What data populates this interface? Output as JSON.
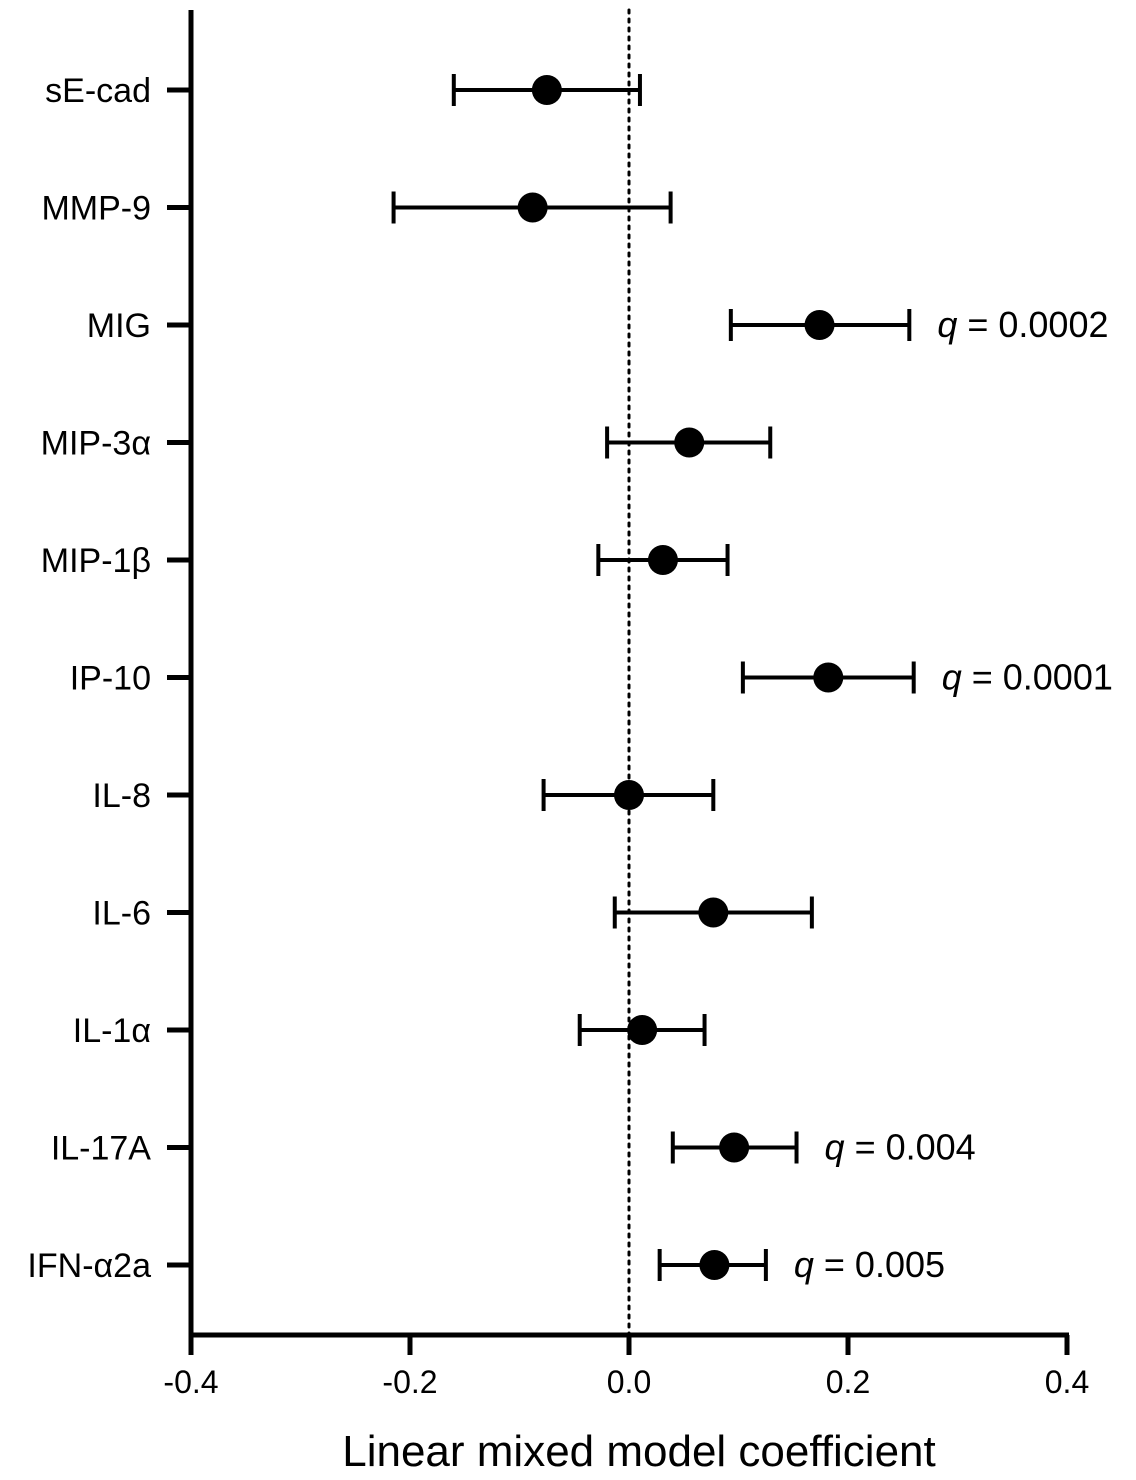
{
  "chart_data": {
    "type": "forest",
    "title": "",
    "xlabel": "Linear mixed model coefficient",
    "ylabel": "",
    "xlim": [
      -0.4,
      0.4
    ],
    "xticks": [
      "-0.4",
      "-0.2",
      "0.0",
      "0.2",
      "0.4"
    ],
    "reference_line": 0.0,
    "grid": false,
    "legend": "none",
    "categories": [
      "sE-cad",
      "MMP-9",
      "MIG",
      "MIP-3α",
      "MIP-1β",
      "IP-10",
      "IL-8",
      "IL-6",
      "IL-1α",
      "IL-17A",
      "IFN-α2a"
    ],
    "estimates": [
      {
        "label": "sE-cad",
        "value": -0.075,
        "low": -0.16,
        "high": 0.01,
        "q": ""
      },
      {
        "label": "MMP-9",
        "value": -0.088,
        "low": -0.215,
        "high": 0.038,
        "q": ""
      },
      {
        "label": "MIG",
        "value": 0.174,
        "low": 0.093,
        "high": 0.256,
        "q": "0.0002"
      },
      {
        "label": "MIP-3α",
        "value": 0.055,
        "low": -0.02,
        "high": 0.129,
        "q": ""
      },
      {
        "label": "MIP-1β",
        "value": 0.031,
        "low": -0.028,
        "high": 0.09,
        "q": ""
      },
      {
        "label": "IP-10",
        "value": 0.182,
        "low": 0.104,
        "high": 0.26,
        "q": "0.0001"
      },
      {
        "label": "IL-8",
        "value": 0.0,
        "low": -0.078,
        "high": 0.077,
        "q": ""
      },
      {
        "label": "IL-6",
        "value": 0.077,
        "low": -0.013,
        "high": 0.167,
        "q": ""
      },
      {
        "label": "IL-1α",
        "value": 0.012,
        "low": -0.045,
        "high": 0.069,
        "q": ""
      },
      {
        "label": "IL-17A",
        "value": 0.096,
        "low": 0.04,
        "high": 0.153,
        "q": "0.004"
      },
      {
        "label": "IFN-α2a",
        "value": 0.078,
        "low": 0.028,
        "high": 0.125,
        "q": "0.005"
      }
    ],
    "q_prefix": "q",
    "q_separator": " = ",
    "colors": {
      "marker": "#000000",
      "line": "#000000"
    }
  }
}
